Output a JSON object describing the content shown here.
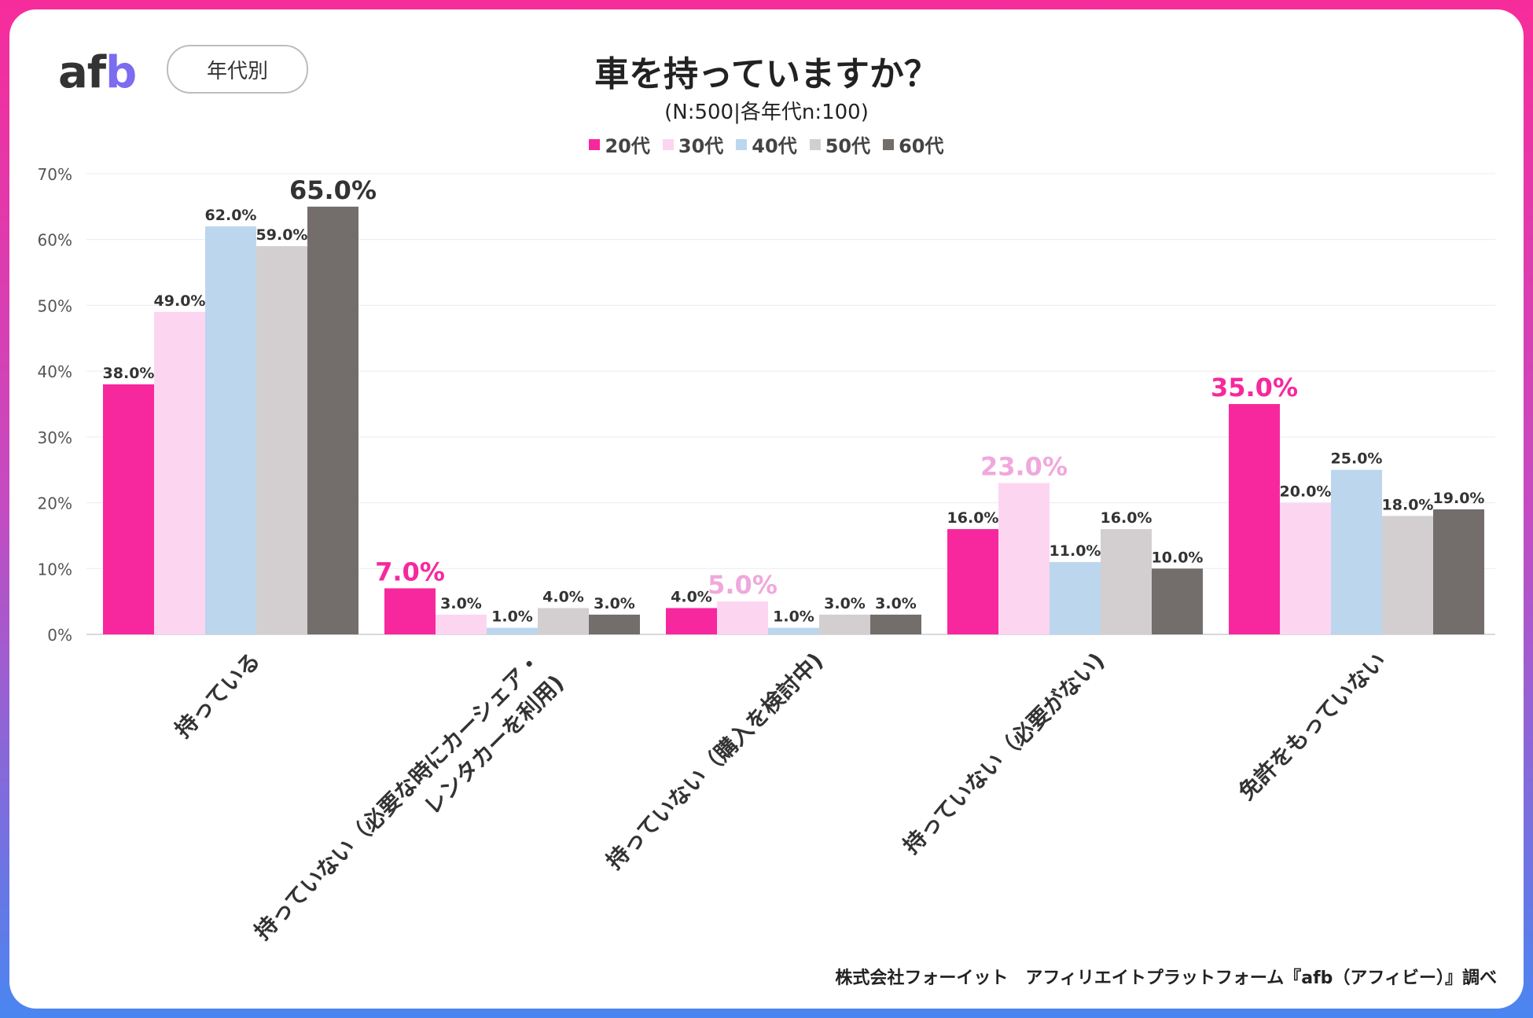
{
  "header": {
    "logo_text": "afb",
    "category_pill": "年代別",
    "title": "車を持っていますか？",
    "subtitle": "(N:500|各年代n:100)"
  },
  "footer": {
    "credit": "株式会社フォーイット　アフィリエイトプラットフォーム『afb（アフィビー）』調べ"
  },
  "chart_data": {
    "type": "bar",
    "title": "車を持っていますか？",
    "categories": [
      [
        "持っている"
      ],
      [
        "持っていない（必要な時にカーシェア・",
        "レンタカーを利用)"
      ],
      [
        "持っていない（購入を検討中)"
      ],
      [
        "持っていない（必要がない)"
      ],
      [
        "免許をもっていない"
      ]
    ],
    "series": [
      {
        "name": "20代",
        "color": "#f7289e",
        "values": [
          38.0,
          7.0,
          4.0,
          16.0,
          35.0
        ]
      },
      {
        "name": "30代",
        "color": "#fcd5f1",
        "values": [
          49.0,
          3.0,
          5.0,
          23.0,
          20.0
        ]
      },
      {
        "name": "40代",
        "color": "#bcd6ee",
        "values": [
          62.0,
          1.0,
          1.0,
          11.0,
          25.0
        ]
      },
      {
        "name": "50代",
        "color": "#d3cfd0",
        "values": [
          59.0,
          4.0,
          3.0,
          16.0,
          18.0
        ]
      },
      {
        "name": "60代",
        "color": "#736e6b",
        "values": [
          65.0,
          3.0,
          3.0,
          10.0,
          19.0
        ]
      }
    ],
    "labels": [
      [
        "38.0%",
        "7.0%",
        "4.0%",
        "16.0%",
        "35.0%"
      ],
      [
        "49.0%",
        "3.0%",
        "5.0%",
        "23.0%",
        "20.0%"
      ],
      [
        "62.0%",
        "1.0%",
        "1.0%",
        "11.0%",
        "25.0%"
      ],
      [
        "59.0%",
        "4.0%",
        "3.0%",
        "16.0%",
        "18.0%"
      ],
      [
        "65.0%",
        "3.0%",
        "3.0%",
        "10.0%",
        "19.0%"
      ]
    ],
    "highlights": [
      {
        "series": 4,
        "category": 0,
        "color": "#333333"
      },
      {
        "series": 0,
        "category": 1,
        "color": "#f7289e"
      },
      {
        "series": 1,
        "category": 2,
        "color": "#f0a8dc"
      },
      {
        "series": 1,
        "category": 3,
        "color": "#f0a8dc"
      },
      {
        "series": 0,
        "category": 4,
        "color": "#f7289e"
      }
    ],
    "y_ticks": [
      "0%",
      "10%",
      "20%",
      "30%",
      "40%",
      "50%",
      "60%",
      "70%"
    ],
    "ylim": [
      0,
      70
    ],
    "ylabel": "",
    "xlabel": "",
    "grid": true,
    "legend_position": "top-center"
  }
}
